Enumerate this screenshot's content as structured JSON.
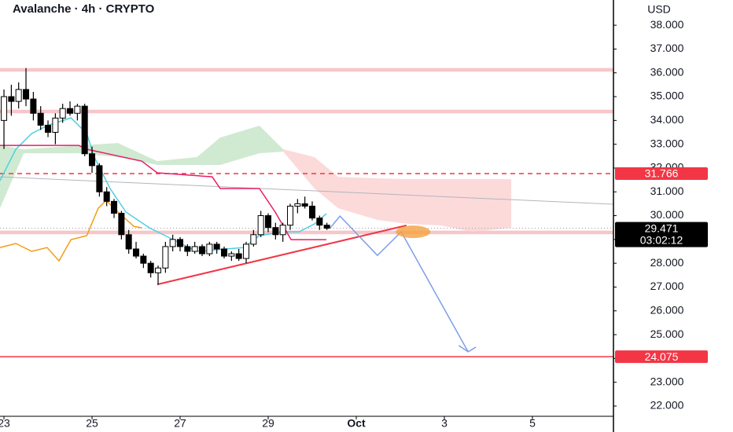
{
  "chart_data": {
    "type": "candlestick",
    "title": "Avalanche · 4h · CRYPTO",
    "currency": "USD",
    "x": [
      23,
      23.167,
      23.333,
      23.5,
      23.667,
      23.833,
      24,
      24.167,
      24.333,
      24.5,
      24.667,
      24.833,
      25,
      25.167,
      25.333,
      25.5,
      25.667,
      25.833,
      26,
      26.167,
      26.333,
      26.5,
      26.667,
      26.833,
      27,
      27.167,
      27.333,
      27.5,
      27.667,
      27.833,
      28,
      28.167,
      28.333,
      28.5,
      28.667,
      28.833,
      29,
      29.167,
      29.333,
      29.5,
      29.667,
      29.833,
      30,
      30.167,
      30.333
    ],
    "open": [
      34.0,
      35.0,
      34.8,
      35.3,
      34.9,
      34.3,
      33.8,
      33.5,
      34.1,
      34.5,
      34.3,
      34.6,
      32.6,
      32.1,
      31.0,
      30.6,
      30.1,
      29.2,
      28.6,
      28.3,
      28.0,
      27.6,
      27.8,
      28.7,
      29.0,
      28.7,
      28.5,
      28.7,
      28.4,
      28.8,
      28.6,
      28.3,
      28.4,
      28.2,
      28.8,
      29.2,
      30.0,
      29.5,
      29.2,
      29.6,
      30.4,
      30.5,
      30.4,
      29.9,
      29.6
    ],
    "high": [
      35.3,
      35.5,
      35.6,
      36.2,
      35.2,
      34.6,
      34.0,
      34.3,
      34.7,
      34.8,
      34.7,
      34.7,
      32.9,
      32.2,
      31.2,
      30.7,
      30.2,
      29.4,
      28.9,
      28.4,
      28.1,
      27.9,
      28.9,
      29.2,
      29.1,
      28.8,
      28.9,
      28.8,
      28.9,
      28.9,
      28.7,
      28.5,
      28.6,
      28.9,
      29.4,
      30.2,
      30.1,
      29.7,
      29.7,
      30.5,
      30.7,
      30.8,
      30.6,
      30.0,
      29.7
    ],
    "low": [
      32.8,
      34.2,
      34.5,
      34.6,
      34.0,
      33.6,
      33.3,
      33.0,
      33.9,
      34.2,
      34.0,
      32.5,
      31.8,
      30.8,
      30.4,
      29.9,
      29.0,
      28.4,
      28.2,
      27.8,
      27.4,
      27.1,
      27.6,
      28.5,
      28.5,
      28.3,
      28.4,
      28.3,
      28.3,
      28.4,
      28.2,
      28.1,
      28.1,
      28.0,
      28.7,
      29.1,
      29.3,
      29.0,
      28.9,
      29.4,
      30.1,
      30.3,
      29.8,
      29.4,
      29.4
    ],
    "close": [
      35.0,
      34.8,
      35.3,
      34.9,
      34.3,
      33.8,
      33.5,
      34.1,
      34.5,
      34.3,
      34.6,
      32.6,
      32.1,
      31.0,
      30.6,
      30.1,
      29.2,
      28.6,
      28.3,
      28.0,
      27.6,
      27.8,
      28.7,
      29.0,
      28.7,
      28.5,
      28.7,
      28.4,
      28.8,
      28.6,
      28.3,
      28.4,
      28.2,
      28.8,
      29.2,
      30.0,
      29.5,
      29.2,
      29.6,
      30.4,
      30.5,
      30.4,
      29.9,
      29.6,
      29.471
    ],
    "up_color": "#ffffff",
    "down_color": "#000000",
    "outline_color": "#000000",
    "xlim": [
      22.91,
      36.84
    ],
    "ylim": [
      21.57,
      39.06
    ],
    "xticks": [
      23,
      25,
      27,
      29,
      {
        "value": 31,
        "label": "Oct"
      },
      {
        "value": 33,
        "label": "3"
      },
      {
        "value": 35,
        "label": "5"
      }
    ],
    "yticks": [
      {
        "value": 22,
        "label": "22.000"
      },
      {
        "value": 23,
        "label": "23.000"
      },
      {
        "value": 24,
        "label": "24.000"
      },
      {
        "value": 25,
        "label": "25.000"
      },
      {
        "value": 26,
        "label": "26.000"
      },
      {
        "value": 27,
        "label": "27.000"
      },
      {
        "value": 28,
        "label": "28.000"
      },
      {
        "value": 29,
        "label": "29.000"
      },
      {
        "value": 30,
        "label": "30.000"
      },
      {
        "value": 31,
        "label": "31.000"
      },
      {
        "value": 32,
        "label": "32.000"
      },
      {
        "value": 33,
        "label": "33.000"
      },
      {
        "value": 34,
        "label": "34.000"
      },
      {
        "value": 35,
        "label": "35.000"
      },
      {
        "value": 36,
        "label": "36.000"
      },
      {
        "value": 37,
        "label": "37.000"
      },
      {
        "value": 38,
        "label": "38.000"
      }
    ],
    "last_price": 29.471,
    "countdown": "03:02:12",
    "levels": [
      {
        "value": 31.766,
        "color": "#f23645",
        "dashed": true
      },
      {
        "value": 24.075,
        "color": "#f23645",
        "dashed": false
      }
    ],
    "bands": [
      {
        "from": 36.05,
        "to": 36.2,
        "color": "#f7c6c9"
      },
      {
        "from": 34.3,
        "to": 34.45,
        "color": "#f7c6c9"
      },
      {
        "from": 29.22,
        "to": 29.37,
        "color": "#f7c6c9"
      }
    ],
    "clouds": [
      {
        "color": "#c8e6c9",
        "x": [
          22.91,
          23.45,
          24.7,
          25.59,
          26.48,
          27.38,
          27.91,
          28.8,
          29.34
        ],
        "upper": [
          32.95,
          32.79,
          32.95,
          33.05,
          32.29,
          32.46,
          33.28,
          33.78,
          32.79
        ],
        "lower": [
          30.31,
          32.62,
          32.62,
          32.46,
          32.13,
          32.13,
          32.13,
          32.62,
          32.69
        ]
      },
      {
        "color": "#fcd3d3",
        "x": [
          29.34,
          30.05,
          30.59,
          31.48,
          32.2,
          32.91,
          33.63,
          34.52
        ],
        "upper": [
          32.79,
          32.46,
          31.63,
          31.57,
          31.53,
          31.53,
          31.53,
          31.53
        ],
        "lower": [
          32.69,
          31.14,
          30.31,
          29.82,
          29.65,
          29.59,
          29.32,
          29.49
        ]
      }
    ],
    "lines": [
      {
        "color": "#b2b5be",
        "width": 1,
        "x": [
          22.91,
          36.84
        ],
        "y": [
          31.63,
          30.48
        ]
      },
      {
        "color": "#4dd0e1",
        "width": 1.5,
        "x": [
          22.91,
          23.27,
          23.63,
          23.98,
          24.52,
          24.88,
          25.05,
          25.41,
          25.77,
          26.3,
          26.66,
          27.02,
          27.38,
          28.45,
          28.8,
          29.34,
          29.7,
          30.05,
          30.32
        ],
        "y": [
          31.47,
          32.79,
          33.45,
          33.78,
          34.11,
          33.45,
          32.46,
          31.14,
          30.15,
          29.49,
          29.16,
          28.83,
          28.5,
          28.66,
          29.16,
          29.32,
          29.32,
          29.65,
          30.08
        ]
      },
      {
        "color": "#e91e63",
        "width": 1.5,
        "x": [
          22.91,
          24.7,
          24.88,
          26.13,
          26.48,
          27.73,
          27.91,
          28.8,
          29.16,
          29.52,
          30.32
        ],
        "y": [
          32.95,
          32.95,
          32.79,
          32.29,
          31.8,
          31.63,
          31.14,
          31.14,
          30.15,
          28.99,
          28.99
        ]
      },
      {
        "color": "#f39c12",
        "width": 1.5,
        "x": [
          22.91,
          23.27,
          23.63,
          23.98,
          24.25,
          24.52,
          24.88,
          25.14,
          25.32,
          25.59,
          25.95,
          26.13
        ],
        "y": [
          28.66,
          28.83,
          28.5,
          28.66,
          28.1,
          28.99,
          29.16,
          30.31,
          30.64,
          30.15,
          29.55,
          29.49
        ]
      },
      {
        "color": "#f23645",
        "width": 2,
        "x": [
          26.48,
          32.14
        ],
        "y": [
          27.11,
          29.59
        ]
      },
      {
        "color": "#7e9ee8",
        "width": 1.5,
        "x": [
          30.41,
          30.63,
          31.48,
          32.02,
          33.54
        ],
        "y": [
          29.49,
          29.98,
          28.33,
          29.32,
          24.28
        ]
      }
    ],
    "highlight": {
      "x": 32.29,
      "y": 29.32,
      "color": "#f5a142"
    }
  }
}
